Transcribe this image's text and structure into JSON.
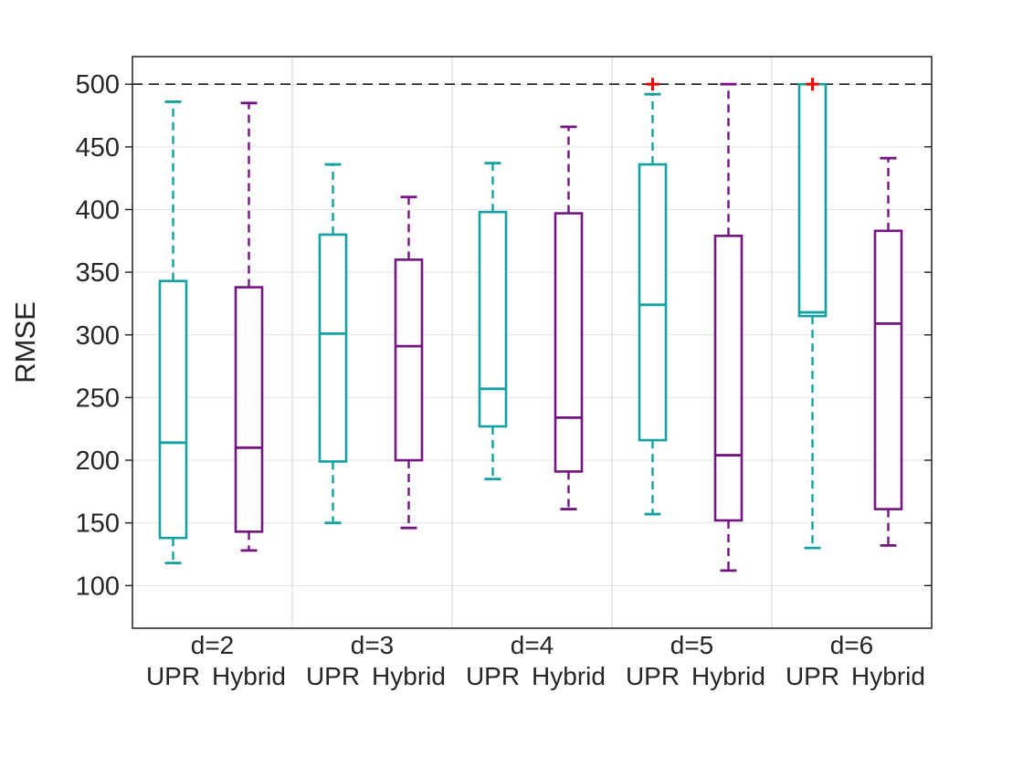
{
  "chart_data": {
    "type": "boxplot",
    "title": "",
    "xlabel": "",
    "ylabel": "RMSE",
    "ylim": [
      66,
      522
    ],
    "yticks": [
      100,
      150,
      200,
      250,
      300,
      350,
      400,
      450,
      500
    ],
    "grid": "on",
    "legend": "none",
    "reference_line": {
      "y": 500,
      "style": "dashed",
      "color": "#1a1a1a"
    },
    "outlier_marker": {
      "glyph": "+",
      "color": "#ff0000"
    },
    "colors": {
      "upr": "#14a1a1",
      "hybrid": "#731480"
    },
    "groups": [
      {
        "label": "d=2",
        "boxes": [
          {
            "name": "UPR",
            "color": "#14a1a1",
            "whisker_low": 118,
            "q1": 138,
            "median": 214,
            "q3": 343,
            "whisker_high": 486,
            "outliers": []
          },
          {
            "name": "Hybrid",
            "color": "#731480",
            "whisker_low": 128,
            "q1": 143,
            "median": 210,
            "q3": 338,
            "whisker_high": 485,
            "outliers": []
          }
        ]
      },
      {
        "label": "d=3",
        "boxes": [
          {
            "name": "UPR",
            "color": "#14a1a1",
            "whisker_low": 150,
            "q1": 199,
            "median": 301,
            "q3": 380,
            "whisker_high": 436,
            "outliers": []
          },
          {
            "name": "Hybrid",
            "color": "#731480",
            "whisker_low": 146,
            "q1": 200,
            "median": 291,
            "q3": 360,
            "whisker_high": 410,
            "outliers": []
          }
        ]
      },
      {
        "label": "d=4",
        "boxes": [
          {
            "name": "UPR",
            "color": "#14a1a1",
            "whisker_low": 185,
            "q1": 227,
            "median": 257,
            "q3": 398,
            "whisker_high": 437,
            "outliers": []
          },
          {
            "name": "Hybrid",
            "color": "#731480",
            "whisker_low": 161,
            "q1": 191,
            "median": 234,
            "q3": 397,
            "whisker_high": 466,
            "outliers": []
          }
        ]
      },
      {
        "label": "d=5",
        "boxes": [
          {
            "name": "UPR",
            "color": "#14a1a1",
            "whisker_low": 157,
            "q1": 216,
            "median": 324,
            "q3": 436,
            "whisker_high": 492,
            "outliers": [
              500
            ]
          },
          {
            "name": "Hybrid",
            "color": "#731480",
            "whisker_low": 112,
            "q1": 152,
            "median": 204,
            "q3": 379,
            "whisker_high": 500,
            "outliers": []
          }
        ]
      },
      {
        "label": "d=6",
        "boxes": [
          {
            "name": "UPR",
            "color": "#14a1a1",
            "whisker_low": 130,
            "q1": 315,
            "median": 318,
            "q3": 500,
            "whisker_high": 500,
            "outliers": [
              500
            ]
          },
          {
            "name": "Hybrid",
            "color": "#731480",
            "whisker_low": 132,
            "q1": 161,
            "median": 309,
            "q3": 383,
            "whisker_high": 441,
            "outliers": []
          }
        ]
      }
    ]
  },
  "style": {
    "grid_color": "#e2e2e2",
    "separator_color": "#d5d5d5",
    "axis_color": "#1f1f1f",
    "text_color": "#262626"
  }
}
